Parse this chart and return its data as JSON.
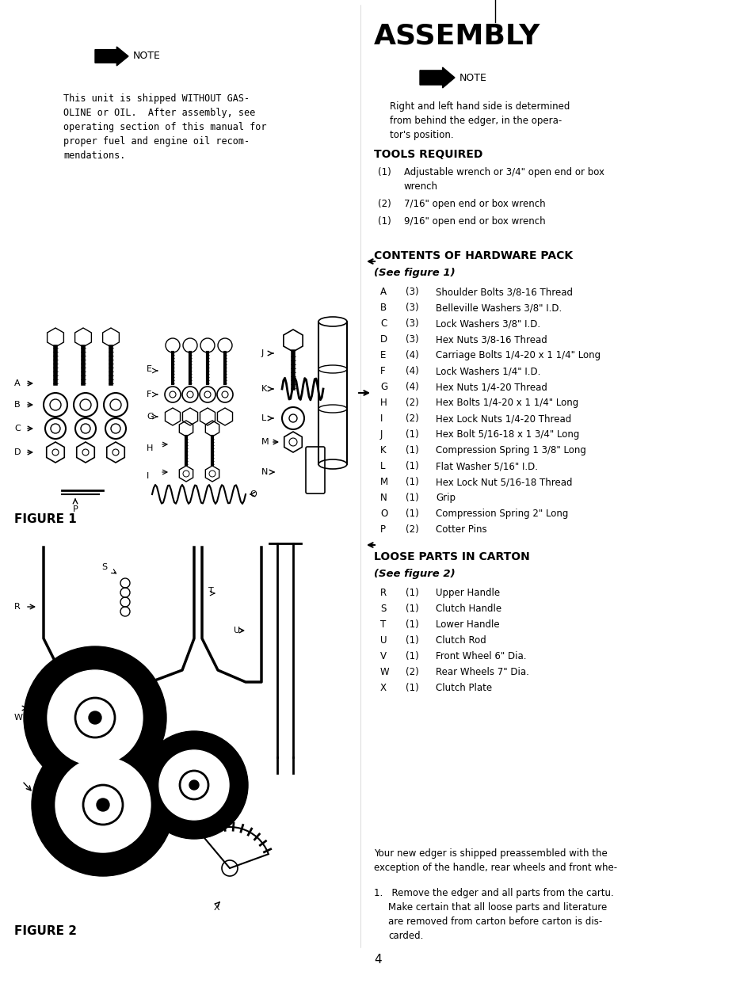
{
  "bg_color": "#ffffff",
  "page_width": 9.54,
  "page_height": 12.46,
  "title": "ASSEMBLY",
  "left_note_text": "This unit is shipped WITHOUT GAS-\nOLINE or OIL.  After assembly, see\noperating section of this manual for\nproper fuel and engine oil recom-\nmendations.",
  "right_note_text": "Right and left hand side is determined\nfrom behind the edger, in the opera-\ntor's position.",
  "tools_required_header": "TOOLS REQUIRED",
  "tool1": "(1)    Adjustable wrench or 3/4\" open end or box\n         wrench",
  "tool2": "(2)    7/16\" open end or box wrench",
  "tool3": "(1)    9/16\" open end or box wrench",
  "hardware_header": "CONTENTS OF HARDWARE PACK",
  "hardware_sub": "(See figure 1)",
  "hardware_items": [
    [
      "A",
      "(3)",
      "Shoulder Bolts 3/8-16 Thread"
    ],
    [
      "B",
      "(3)",
      "Belleville Washers 3/8\" I.D."
    ],
    [
      "C",
      "(3)",
      "Lock Washers 3/8\" I.D."
    ],
    [
      "D",
      "(3)",
      "Hex Nuts 3/8-16 Thread"
    ],
    [
      "E",
      "(4)",
      "Carriage Bolts 1/4-20 x 1 1/4\" Long"
    ],
    [
      "F",
      "(4)",
      "Lock Washers 1/4\" I.D."
    ],
    [
      "G",
      "(4)",
      "Hex Nuts 1/4-20 Thread"
    ],
    [
      "H",
      "(2)",
      "Hex Bolts 1/4-20 x 1 1/4\" Long"
    ],
    [
      "I",
      "(2)",
      "Hex Lock Nuts 1/4-20 Thread"
    ],
    [
      "J",
      "(1)",
      "Hex Bolt 5/16-18 x 1 3/4\" Long"
    ],
    [
      "K",
      "(1)",
      "Compression Spring 1 3/8\" Long"
    ],
    [
      "L",
      "(1)",
      "Flat Washer 5/16\" I.D."
    ],
    [
      "M",
      "(1)",
      "Hex Lock Nut 5/16-18 Thread"
    ],
    [
      "N",
      "(1)",
      "Grip"
    ],
    [
      "O",
      "(1)",
      "Compression Spring 2\" Long"
    ],
    [
      "P",
      "(2)",
      "Cotter Pins"
    ]
  ],
  "loose_header": "LOOSE PARTS IN CARTON",
  "loose_sub": "(See figure 2)",
  "loose_items": [
    [
      "R",
      "(1)",
      "Upper Handle"
    ],
    [
      "S",
      "(1)",
      "Clutch Handle"
    ],
    [
      "T",
      "(1)",
      "Lower Handle"
    ],
    [
      "U",
      "(1)",
      "Clutch Rod"
    ],
    [
      "V",
      "(1)",
      "Front Wheel 6\" Dia."
    ],
    [
      "W",
      "(2)",
      "Rear Wheels 7\" Dia."
    ],
    [
      "X",
      "(1)",
      "Clutch Plate"
    ]
  ],
  "figure1_caption": "FIGURE 1",
  "figure2_caption": "FIGURE 2",
  "bottom_text_1": "Your new edger is shipped preassembled with the\nexception of the handle, rear wheels and front whe-",
  "bottom_text_2": "1.   Remove the edger and all parts from the cartu.\n     Make certain that all loose parts and literature\n     are removed from carton before carton is dis-\n     carded.",
  "page_number": "4"
}
